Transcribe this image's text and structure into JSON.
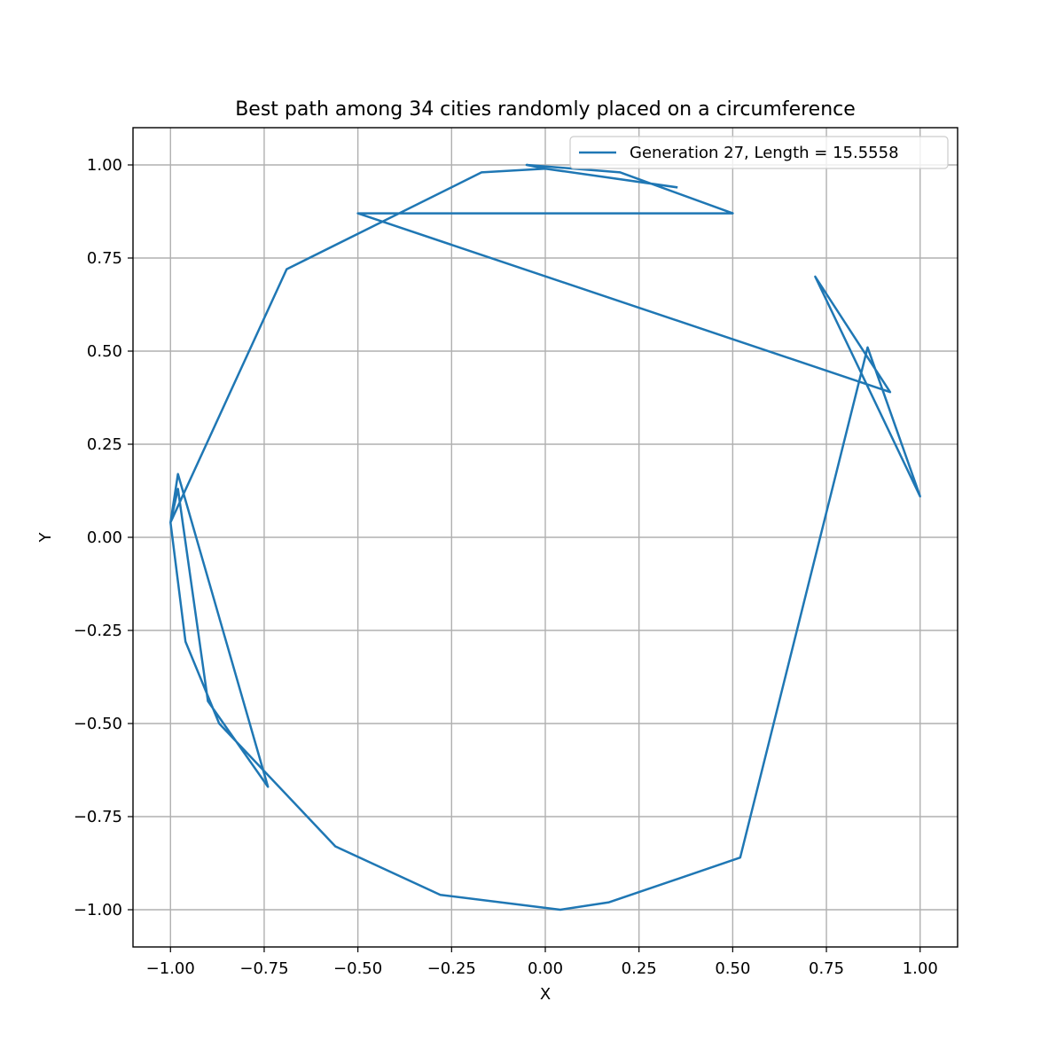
{
  "chart_data": {
    "type": "line",
    "title": "Best path among 34 cities randomly placed on a circumference",
    "xlabel": "X",
    "ylabel": "Y",
    "xlim": [
      -1.1,
      1.1
    ],
    "ylim": [
      -1.1,
      1.1
    ],
    "xticks": [
      -1.0,
      -0.75,
      -0.5,
      -0.25,
      0.0,
      0.25,
      0.5,
      0.75,
      1.0
    ],
    "xtick_labels": [
      "−1.00",
      "−0.75",
      "−0.50",
      "−0.25",
      "0.00",
      "0.25",
      "0.50",
      "0.75",
      "1.00"
    ],
    "yticks": [
      1.0,
      0.75,
      0.5,
      0.25,
      0.0,
      -0.25,
      -0.5,
      -0.75,
      -1.0
    ],
    "ytick_labels": [
      "1.00",
      "0.75",
      "0.50",
      "0.25",
      "0.00",
      "−0.25",
      "−0.50",
      "−0.75",
      "−1.00"
    ],
    "grid": true,
    "legend_position": "top-right",
    "series": [
      {
        "name": "Generation 27, Length = 15.5558",
        "color": "#1f77b4",
        "x": [
          0.35,
          0.0,
          -0.05,
          0.2,
          0.5,
          -0.5,
          0.92,
          0.72,
          1.0,
          0.86,
          0.52,
          0.17,
          0.04,
          -0.28,
          -0.56,
          -0.87,
          -0.96,
          -1.0,
          -0.98,
          -0.74,
          -0.9,
          -0.98,
          -1.0,
          -0.69,
          -0.17,
          0.0,
          0.35
        ],
        "y": [
          0.94,
          0.99,
          1.0,
          0.98,
          0.87,
          0.87,
          0.39,
          0.7,
          0.11,
          0.51,
          -0.86,
          -0.98,
          -1.0,
          -0.96,
          -0.83,
          -0.5,
          -0.28,
          0.04,
          0.17,
          -0.67,
          -0.44,
          0.13,
          0.04,
          0.72,
          0.98,
          0.99,
          0.94
        ]
      }
    ]
  }
}
